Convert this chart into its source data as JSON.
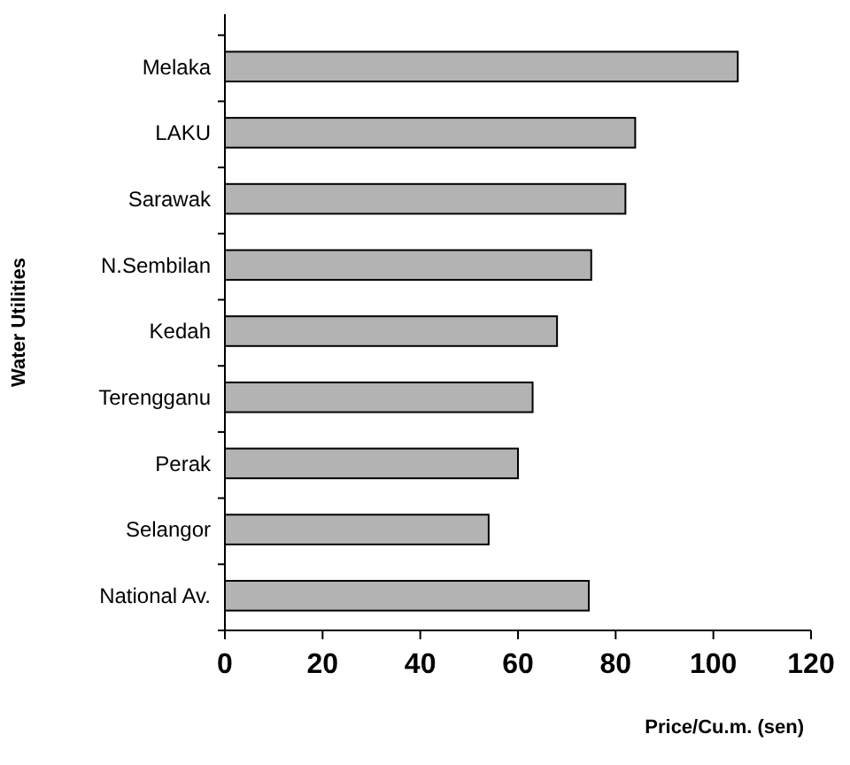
{
  "chart_data": {
    "type": "bar",
    "orientation": "horizontal",
    "xlabel": "Price/Cu.m. (sen)",
    "ylabel": "Water Utilities",
    "categories": [
      "Melaka",
      "LAKU",
      "Sarawak",
      "N.Sembilan",
      "Kedah",
      "Terengganu",
      "Perak",
      "Selangor",
      "National Av."
    ],
    "values": [
      105,
      84,
      82,
      75,
      68,
      63,
      60,
      54,
      74.5
    ],
    "color": "#b3b3b3",
    "xlim": [
      0,
      120
    ],
    "xticks": [
      0,
      20,
      40,
      60,
      80,
      100,
      120
    ],
    "grid": false
  }
}
